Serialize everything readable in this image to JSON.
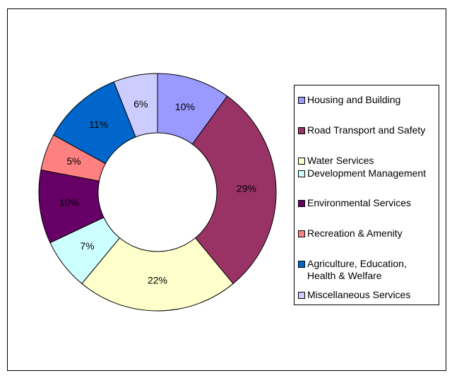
{
  "chart_data": {
    "type": "donut",
    "categories": [
      "Housing and Building",
      "Road Transport and Safety",
      "Water Services",
      "Development Management",
      "Environmental Services",
      "Recreation & Amenity",
      "Agriculture, Education, Health & Welfare",
      "Miscellaneous Services"
    ],
    "values": [
      10,
      29,
      22,
      7,
      10,
      5,
      11,
      6
    ],
    "value_labels": [
      "10%",
      "29%",
      "22%",
      "7%",
      "10%",
      "5%",
      "11%",
      "6%"
    ],
    "colors": [
      "#9999ff",
      "#993366",
      "#ffffcc",
      "#ccffff",
      "#660066",
      "#ff8080",
      "#0066cc",
      "#ccccff"
    ],
    "legend": "right"
  }
}
